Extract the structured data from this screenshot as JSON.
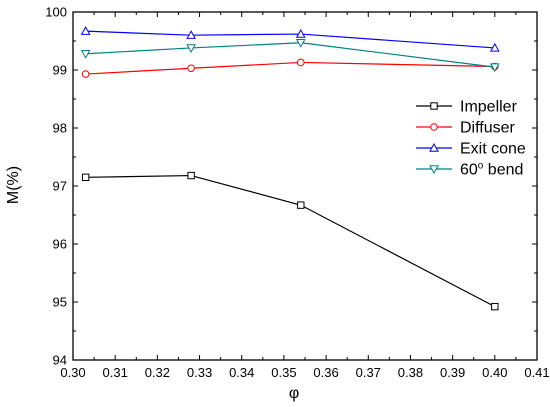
{
  "chart_data": {
    "type": "line",
    "xlabel": "φ",
    "ylabel": "M(%)",
    "xlim": [
      0.3,
      0.41
    ],
    "ylim": [
      94,
      100
    ],
    "x_ticks": [
      "0.30",
      "0.31",
      "0.32",
      "0.33",
      "0.34",
      "0.35",
      "0.36",
      "0.37",
      "0.38",
      "0.39",
      "0.40",
      "0.41"
    ],
    "y_ticks": [
      "94",
      "95",
      "96",
      "97",
      "98",
      "99",
      "100"
    ],
    "grid": false,
    "legend_position": "right",
    "series": [
      {
        "name": "Impeller",
        "color": "#000000",
        "marker": "square",
        "x": [
          0.303,
          0.328,
          0.354,
          0.4
        ],
        "y": [
          97.15,
          97.18,
          96.67,
          94.92
        ]
      },
      {
        "name": "Diffuser",
        "color": "#ff0000",
        "marker": "circle",
        "x": [
          0.303,
          0.328,
          0.354,
          0.4
        ],
        "y": [
          98.93,
          99.03,
          99.13,
          99.06
        ]
      },
      {
        "name": "Exit cone",
        "color": "#0000ff",
        "marker": "triangle-up",
        "x": [
          0.303,
          0.328,
          0.354,
          0.4
        ],
        "y": [
          99.67,
          99.6,
          99.62,
          99.38
        ]
      },
      {
        "name": "60° bend",
        "label_main": "60",
        "label_super": "o",
        "label_rest": " bend",
        "color": "#008080",
        "marker": "triangle-down",
        "x": [
          0.303,
          0.328,
          0.354,
          0.4
        ],
        "y": [
          99.28,
          99.38,
          99.47,
          99.05
        ]
      }
    ]
  }
}
